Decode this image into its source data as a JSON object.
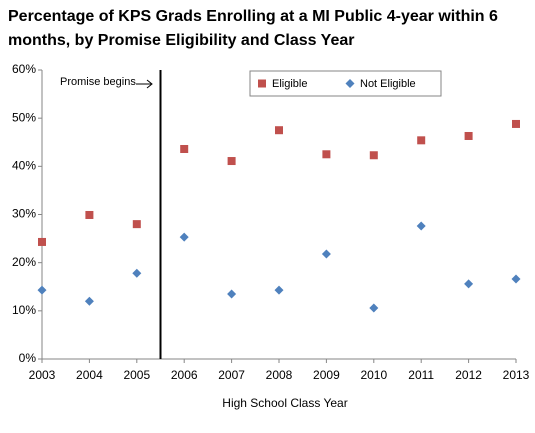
{
  "chart_data": {
    "type": "scatter",
    "title": "Percentage of KPS Grads Enrolling at a MI Public 4-year within 6 months, by Promise Eligibility and Class Year",
    "x_label": "High School Class Year",
    "x": [
      2003,
      2004,
      2005,
      2006,
      2007,
      2008,
      2009,
      2010,
      2011,
      2012,
      2013
    ],
    "xlim": [
      2003,
      2013
    ],
    "xticks": [
      2003,
      2004,
      2005,
      2006,
      2007,
      2008,
      2009,
      2010,
      2011,
      2012,
      2013
    ],
    "ylim": [
      0,
      60
    ],
    "yticks": [
      {
        "value": 0,
        "label": "0%"
      },
      {
        "value": 10,
        "label": "10%"
      },
      {
        "value": 20,
        "label": "20%"
      },
      {
        "value": 30,
        "label": "30%"
      },
      {
        "value": 40,
        "label": "40%"
      },
      {
        "value": 50,
        "label": "50%"
      },
      {
        "value": 60,
        "label": "60%"
      }
    ],
    "grid": false,
    "legend": "top",
    "annotation": {
      "text": "Promise begins",
      "x": 2005.5
    },
    "series": [
      {
        "name": "Eligible",
        "color": "#c0504d",
        "marker": "square",
        "values": [
          24.3,
          29.9,
          28.0,
          43.6,
          41.1,
          47.5,
          42.5,
          42.3,
          45.4,
          46.3,
          48.8
        ]
      },
      {
        "name": "Not Eligible",
        "color": "#4f81bd",
        "marker": "diamond",
        "values": [
          14.3,
          12.0,
          17.8,
          25.3,
          13.5,
          14.3,
          21.8,
          10.6,
          27.6,
          15.6,
          16.6
        ]
      }
    ]
  }
}
